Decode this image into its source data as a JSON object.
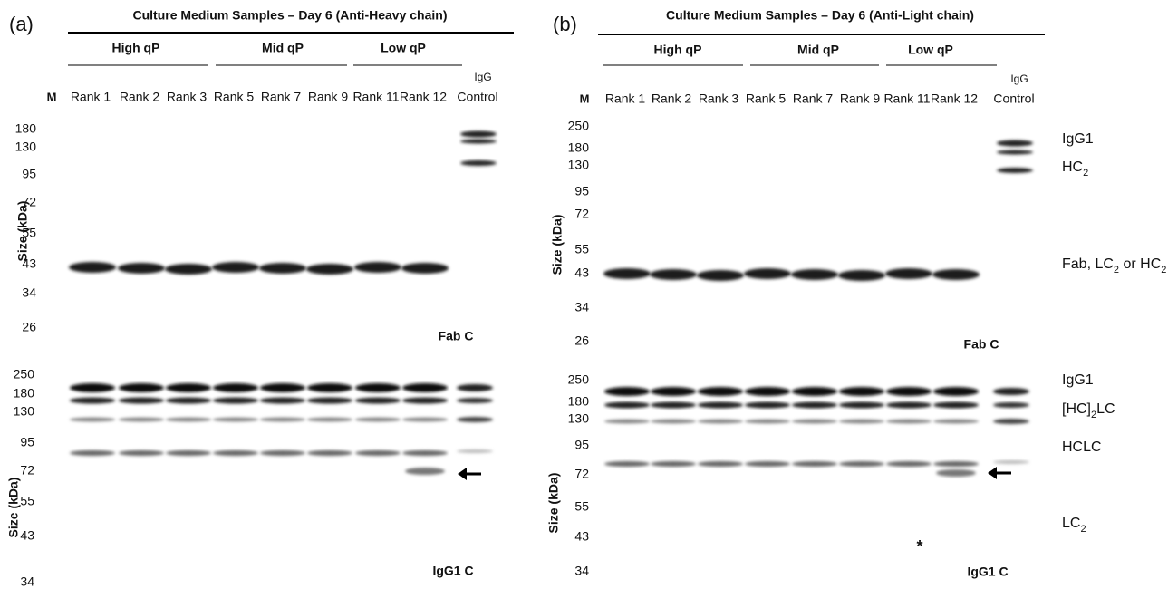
{
  "panels": [
    {
      "letter": "(a)",
      "title": "Culture Medium Samples – Day 6 (Anti-Heavy chain)",
      "groups": [
        "High qP",
        "Mid qP",
        "Low qP"
      ],
      "control_label": [
        "IgG",
        "Control"
      ],
      "lanes": [
        "M",
        "Rank 1",
        "Rank 2",
        "Rank 3",
        "Rank 5",
        "Rank 7",
        "Rank 9",
        "Rank 11",
        "Rank 12"
      ],
      "axis_label": "Size (kDa)",
      "blots": [
        {
          "markers": [
            180,
            130,
            95,
            72,
            55,
            43,
            34,
            26
          ],
          "label": "Fab C"
        },
        {
          "markers": [
            250,
            180,
            130,
            95,
            72,
            55,
            43,
            34
          ],
          "label": "IgG1 C"
        }
      ]
    },
    {
      "letter": "(b)",
      "title": "Culture Medium Samples – Day 6 (Anti-Light chain)",
      "groups": [
        "High qP",
        "Mid qP",
        "Low qP"
      ],
      "control_label": [
        "IgG",
        "Control"
      ],
      "lanes": [
        "M",
        "Rank 1",
        "Rank 2",
        "Rank 3",
        "Rank 5",
        "Rank 7",
        "Rank 9",
        "Rank 11",
        "Rank 12"
      ],
      "axis_label": "Size (kDa)",
      "blots": [
        {
          "markers": [
            250,
            180,
            130,
            95,
            72,
            55,
            43,
            34,
            26
          ],
          "label": "Fab C"
        },
        {
          "markers": [
            250,
            180,
            130,
            95,
            72,
            55,
            43,
            34
          ],
          "label": "IgG1 C"
        }
      ],
      "annotations": [
        [
          "IgG1"
        ],
        [
          "HC",
          "2"
        ],
        [
          "Fab, LC",
          "2",
          " or HC",
          "2"
        ],
        [
          "IgG1"
        ],
        [
          "[HC]",
          "2",
          "LC"
        ],
        [
          "HCLC"
        ],
        [
          "LC",
          "2"
        ]
      ],
      "asterisk": "*"
    }
  ]
}
